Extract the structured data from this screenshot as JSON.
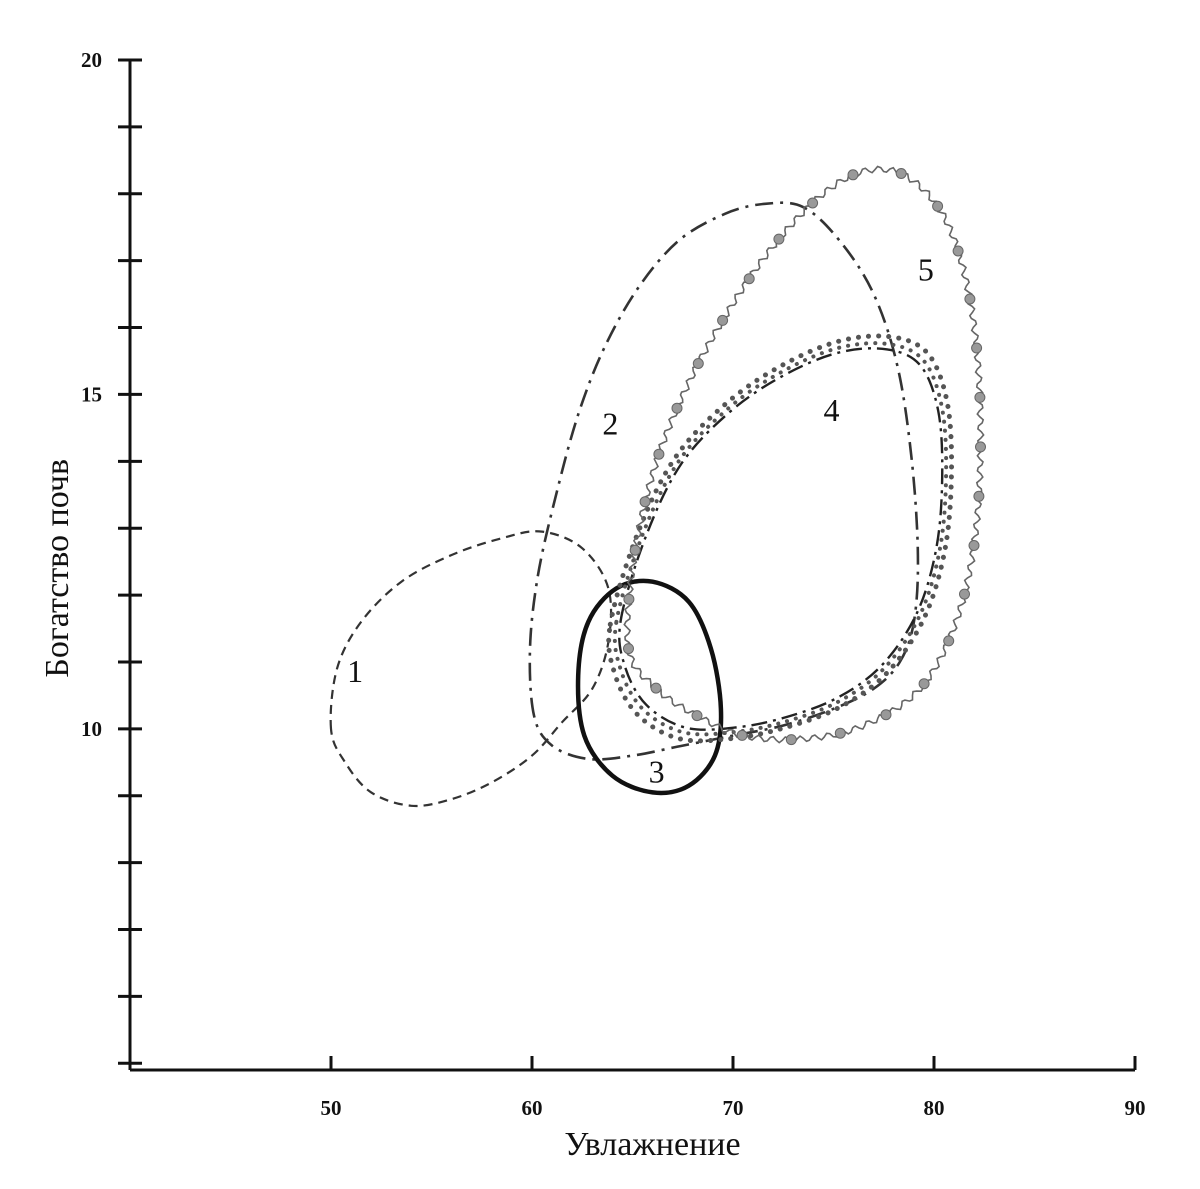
{
  "chart_data": {
    "type": "ecological-ranges",
    "xlabel": "Увлажнение",
    "ylabel": "Богатство почв",
    "xlim": [
      40,
      90
    ],
    "ylim": [
      4.9,
      20
    ],
    "x_ticks": [
      50,
      60,
      70,
      80,
      90
    ],
    "y_ticks": [
      10,
      15,
      20
    ],
    "y_minor_step": 1,
    "grid": false,
    "series": [
      {
        "name": "1",
        "style": "dashed",
        "color": "#333333",
        "label_at": [
          50.8,
          10.7
        ],
        "points": [
          [
            50,
            10.0
          ],
          [
            50.3,
            10.9
          ],
          [
            51.5,
            11.6
          ],
          [
            53.5,
            12.2
          ],
          [
            56,
            12.6
          ],
          [
            58.5,
            12.85
          ],
          [
            60.5,
            12.95
          ],
          [
            62.5,
            12.7
          ],
          [
            63.8,
            12.1
          ],
          [
            63.8,
            11.3
          ],
          [
            63,
            10.6
          ],
          [
            61.5,
            10.1
          ],
          [
            60,
            9.6
          ],
          [
            58,
            9.2
          ],
          [
            56,
            8.95
          ],
          [
            54,
            8.85
          ],
          [
            52,
            9.05
          ],
          [
            50.7,
            9.5
          ]
        ]
      },
      {
        "name": "2",
        "style": "dash-dot",
        "color": "#333333",
        "label_at": [
          63.5,
          14.4
        ],
        "points": [
          [
            60.1,
            10.2
          ],
          [
            59.9,
            11.2
          ],
          [
            60.3,
            12.3
          ],
          [
            61.2,
            13.5
          ],
          [
            62.3,
            14.7
          ],
          [
            63.6,
            15.7
          ],
          [
            65.3,
            16.6
          ],
          [
            67.3,
            17.3
          ],
          [
            69.6,
            17.7
          ],
          [
            71.6,
            17.85
          ],
          [
            73.5,
            17.8
          ],
          [
            75.3,
            17.3
          ],
          [
            77,
            16.5
          ],
          [
            78.2,
            15.4
          ],
          [
            78.9,
            14
          ],
          [
            79.2,
            12.6
          ],
          [
            79,
            11.6
          ],
          [
            78.3,
            11
          ],
          [
            77,
            10.6
          ],
          [
            75,
            10.3
          ],
          [
            72.5,
            10.05
          ],
          [
            70,
            9.9
          ],
          [
            67.5,
            9.75
          ],
          [
            65,
            9.6
          ],
          [
            62.8,
            9.55
          ],
          [
            61,
            9.75
          ]
        ]
      },
      {
        "name": "3",
        "style": "solid-bold",
        "color": "#111111",
        "label_at": [
          65.8,
          9.2
        ],
        "points": [
          [
            66,
            12.2
          ],
          [
            67.8,
            11.9
          ],
          [
            68.9,
            11.2
          ],
          [
            69.4,
            10.3
          ],
          [
            69.1,
            9.6
          ],
          [
            67.8,
            9.15
          ],
          [
            66,
            9.05
          ],
          [
            64,
            9.3
          ],
          [
            62.6,
            9.9
          ],
          [
            62.3,
            10.8
          ],
          [
            62.8,
            11.6
          ],
          [
            64.2,
            12.1
          ]
        ]
      },
      {
        "name": "4",
        "style": "dotted-and-dash-dot",
        "color": "#333333",
        "label_at": [
          74.5,
          14.6
        ],
        "points": [
          [
            64.2,
            11.6
          ],
          [
            65.5,
            12.9
          ],
          [
            67.3,
            14.0
          ],
          [
            69.8,
            14.8
          ],
          [
            72.5,
            15.35
          ],
          [
            75.3,
            15.7
          ],
          [
            77.8,
            15.75
          ],
          [
            79.5,
            15.5
          ],
          [
            80.4,
            14.8
          ],
          [
            80.6,
            13.8
          ],
          [
            80.3,
            12.7
          ],
          [
            79.3,
            11.7
          ],
          [
            77.5,
            10.9
          ],
          [
            75.2,
            10.4
          ],
          [
            72.5,
            10.1
          ],
          [
            70,
            9.95
          ],
          [
            67.5,
            9.95
          ],
          [
            65.5,
            10.3
          ],
          [
            64.4,
            10.9
          ]
        ]
      },
      {
        "name": "5",
        "style": "wavy-with-dots",
        "color": "#555555",
        "label_at": [
          79.2,
          16.7
        ],
        "points": [
          [
            64.8,
            11.2
          ],
          [
            65.1,
            12.6
          ],
          [
            66.2,
            14.0
          ],
          [
            68.0,
            15.3
          ],
          [
            70.3,
            16.5
          ],
          [
            72.5,
            17.4
          ],
          [
            74.7,
            18.05
          ],
          [
            76.7,
            18.35
          ],
          [
            78.7,
            18.25
          ],
          [
            80.6,
            17.6
          ],
          [
            81.8,
            16.4
          ],
          [
            82.3,
            14.8
          ],
          [
            82.1,
            13.0
          ],
          [
            81.1,
            11.6
          ],
          [
            79.3,
            10.6
          ],
          [
            76.5,
            10.05
          ],
          [
            73.5,
            9.85
          ],
          [
            70.5,
            9.9
          ],
          [
            68.2,
            10.2
          ],
          [
            66.2,
            10.6
          ]
        ]
      }
    ]
  }
}
